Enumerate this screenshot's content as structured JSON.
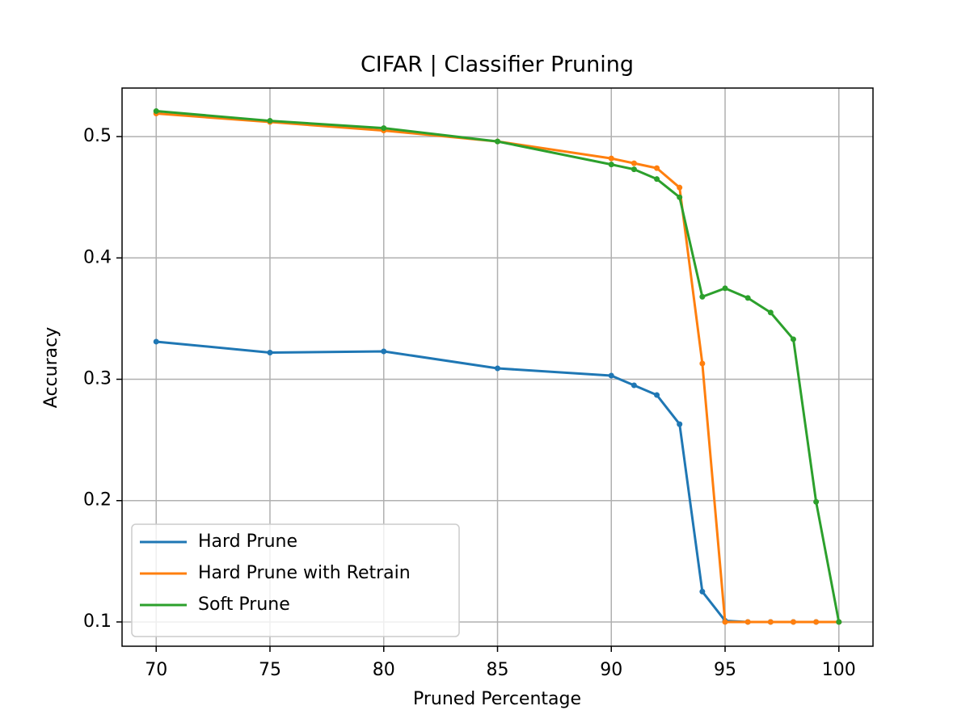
{
  "chart_data": {
    "type": "line",
    "title": "CIFAR | Classifier Pruning",
    "xlabel": "Pruned Percentage",
    "ylabel": "Accuracy",
    "x": [
      70,
      75,
      80,
      85,
      90,
      91,
      92,
      93,
      94,
      95,
      96,
      97,
      98,
      99,
      100
    ],
    "series": [
      {
        "name": "Hard Prune",
        "color": "#1f77b4",
        "values": [
          0.331,
          0.322,
          0.323,
          0.309,
          0.303,
          0.295,
          0.287,
          0.263,
          0.125,
          0.101,
          0.1,
          0.1,
          0.1,
          0.1,
          0.1
        ]
      },
      {
        "name": "Hard Prune with Retrain",
        "color": "#ff7f0e",
        "values": [
          0.519,
          0.512,
          0.505,
          0.496,
          0.482,
          0.478,
          0.474,
          0.458,
          0.313,
          0.1,
          0.1,
          0.1,
          0.1,
          0.1,
          0.1
        ]
      },
      {
        "name": "Soft Prune",
        "color": "#2ca02c",
        "values": [
          0.521,
          0.513,
          0.507,
          0.496,
          0.477,
          0.473,
          0.465,
          0.45,
          0.368,
          0.375,
          0.367,
          0.355,
          0.333,
          0.199,
          0.1
        ]
      }
    ],
    "xlim": [
      68.5,
      101.5
    ],
    "ylim": [
      0.08,
      0.54
    ],
    "xticks": [
      70,
      75,
      80,
      85,
      90,
      95,
      100
    ],
    "yticks": [
      0.1,
      0.2,
      0.3,
      0.4,
      0.5
    ],
    "grid": true,
    "legend": "lower left"
  }
}
